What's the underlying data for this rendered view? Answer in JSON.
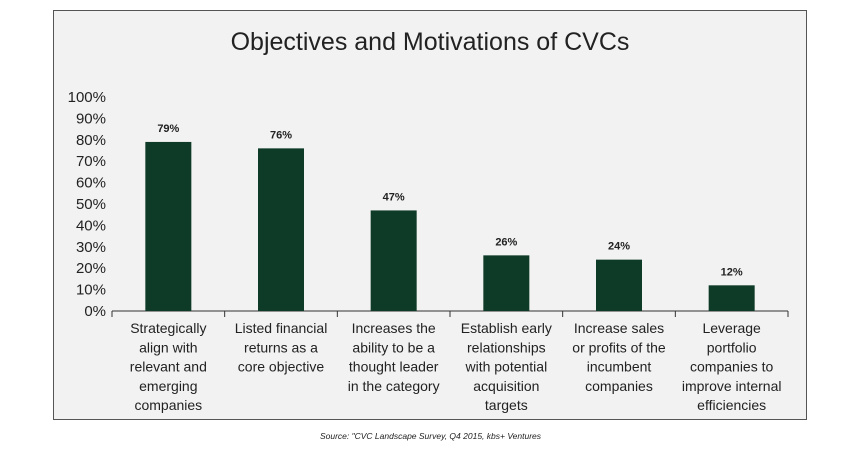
{
  "chart_data": {
    "type": "bar",
    "title": "Objectives and Motivations of CVCs",
    "categories": [
      [
        "Strategically",
        "align with",
        "relevant and",
        "emerging",
        "companies"
      ],
      [
        "Listed financial",
        "returns as a",
        "core objective"
      ],
      [
        "Increases the",
        "ability to be a",
        "thought leader",
        "in the category"
      ],
      [
        "Establish early",
        "relationships",
        "with potential",
        "acquisition",
        "targets"
      ],
      [
        "Increase sales",
        "or profits of the",
        "incumbent",
        "companies"
      ],
      [
        "Leverage",
        "portfolio",
        "companies to",
        "improve internal",
        "efficiencies"
      ]
    ],
    "values": [
      79,
      76,
      47,
      26,
      24,
      12
    ],
    "data_labels": [
      "79%",
      "76%",
      "47%",
      "26%",
      "24%",
      "12%"
    ],
    "yticks": [
      "0%",
      "10%",
      "20%",
      "30%",
      "40%",
      "50%",
      "60%",
      "70%",
      "80%",
      "90%",
      "100%"
    ],
    "ylim": [
      0,
      100
    ],
    "grid": false,
    "legend": "none",
    "bar_color": "#0e3b27",
    "source": "Source: \"CVC Landscape Survey, Q4 2015, kbs+ Ventures"
  }
}
